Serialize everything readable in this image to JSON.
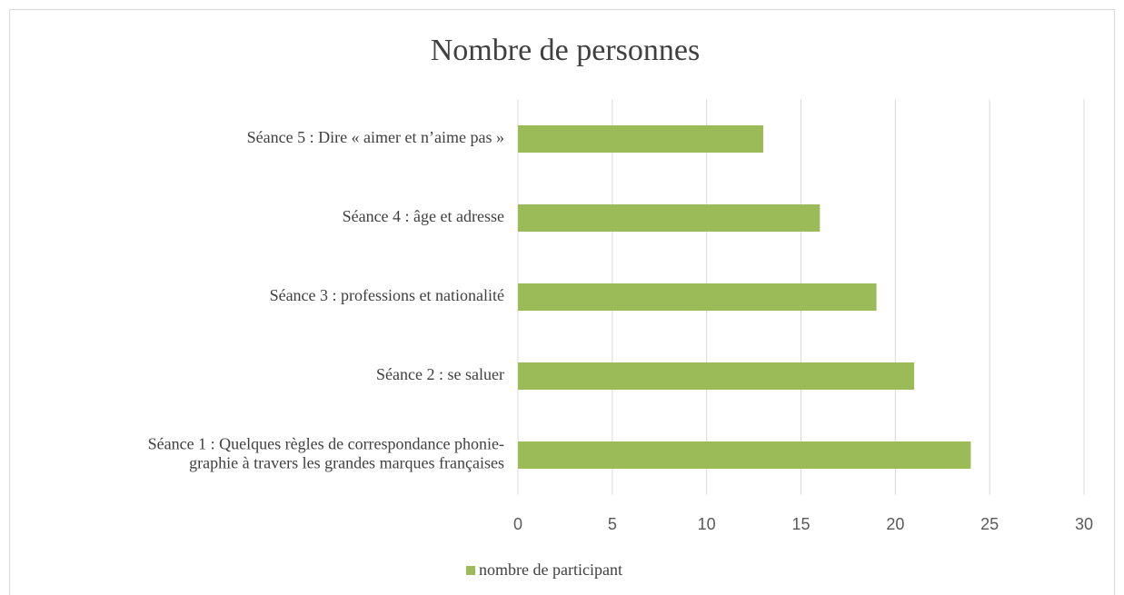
{
  "chart_data": {
    "type": "bar",
    "orientation": "horizontal",
    "title": "Nombre de personnes",
    "categories": [
      "Séance 1 : Quelques règles de correspondance phonie-\ngraphie à travers les grandes marques françaises",
      "Séance 2 : se saluer",
      "Séance 3 : professions et nationalité",
      "Séance 4 : âge et adresse",
      "Séance 5 : Dire « aimer et n’aime pas »"
    ],
    "series": [
      {
        "name": "nombre de participant",
        "color": "#9bbb59",
        "values": [
          24,
          21,
          19,
          16,
          13
        ]
      }
    ],
    "xlim": [
      0,
      30
    ],
    "xticks": [
      0,
      5,
      10,
      15,
      20,
      25,
      30
    ],
    "grid": true,
    "legend": "bottom"
  }
}
